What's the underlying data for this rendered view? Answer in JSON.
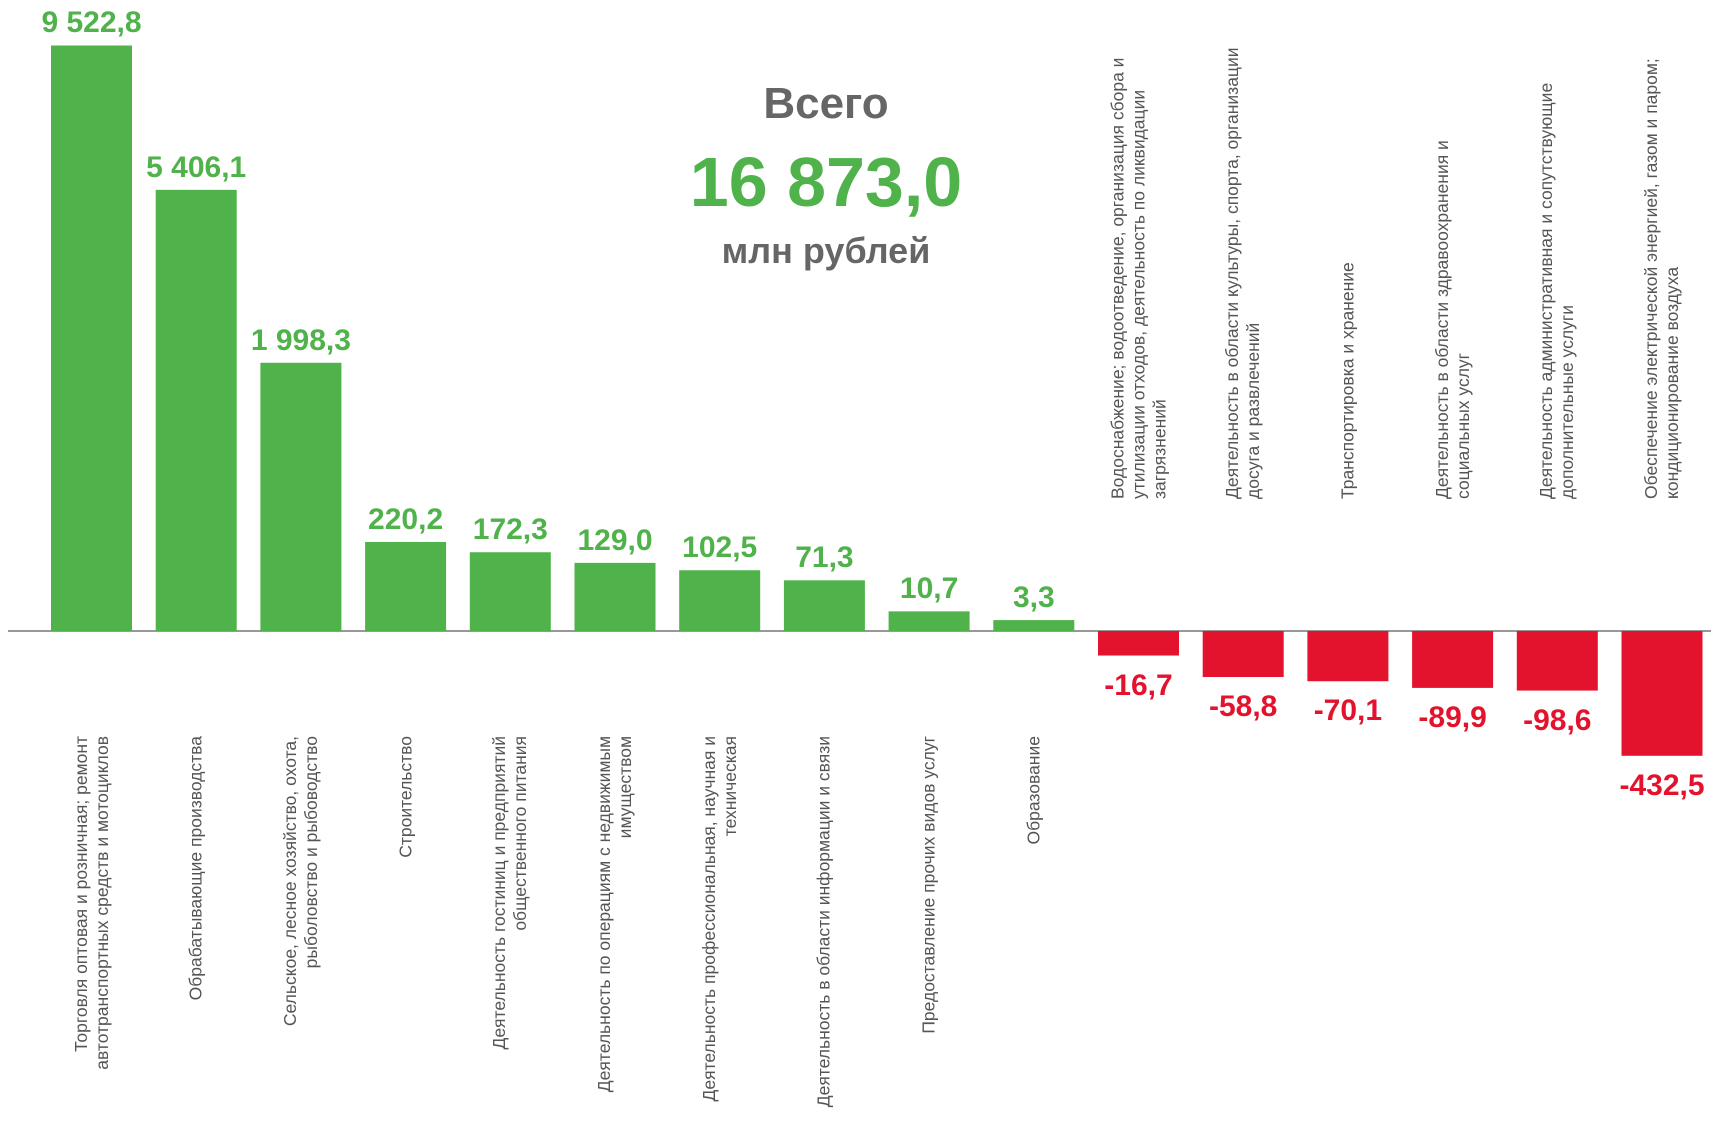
{
  "chart_data": {
    "type": "bar",
    "yscale": "sqrt",
    "positive_color": "#4fb24a",
    "negative_color": "#e3132e",
    "total": {
      "label": "Всего",
      "value": "16 873,0",
      "unit": "млн рублей"
    },
    "categories": [
      "Торговля оптовая и розничная; ремонт автотранспортных средств и мотоциклов",
      "Обрабатывающие производства",
      "Сельское, лесное хозяйство, охота, рыболовство и рыбоводство",
      "Строительство",
      "Деятельность гостиниц и предприятий общественного питания",
      "Деятельность по операциям с недвижимым имуществом",
      "Деятельность профессиональная, научная и техническая",
      "Деятельность в области информации и связи",
      "Предоставление прочих видов услуг",
      "Образование",
      "Водоснабжение; водоотведение, организация сбора и утилизации отходов, деятельность по ликвидации загрязнений",
      "Деятельность в области культуры, спорта, организации досуга и развлечений",
      "Транспортировка и хранение",
      "Деятельность в области здравоохранения и социальных услуг",
      "Деятельность административная и сопутствующие дополнительные услуги",
      "Обеспечение электрической энергией, газом и паром; кондиционирование воздуха"
    ],
    "values": [
      9522.8,
      5406.1,
      1998.3,
      220.2,
      172.3,
      129.0,
      102.5,
      71.3,
      10.7,
      3.3,
      -16.7,
      -58.8,
      -70.1,
      -89.9,
      -98.6,
      -432.5
    ],
    "value_labels": [
      "9 522,8",
      "5 406,1",
      "1 998,3",
      "220,2",
      "172,3",
      "129,0",
      "102,5",
      "71,3",
      "10,7",
      "3,3",
      "-16,7",
      "-58,8",
      "-70,1",
      "-89,9",
      "-98,6",
      "-432,5"
    ]
  }
}
